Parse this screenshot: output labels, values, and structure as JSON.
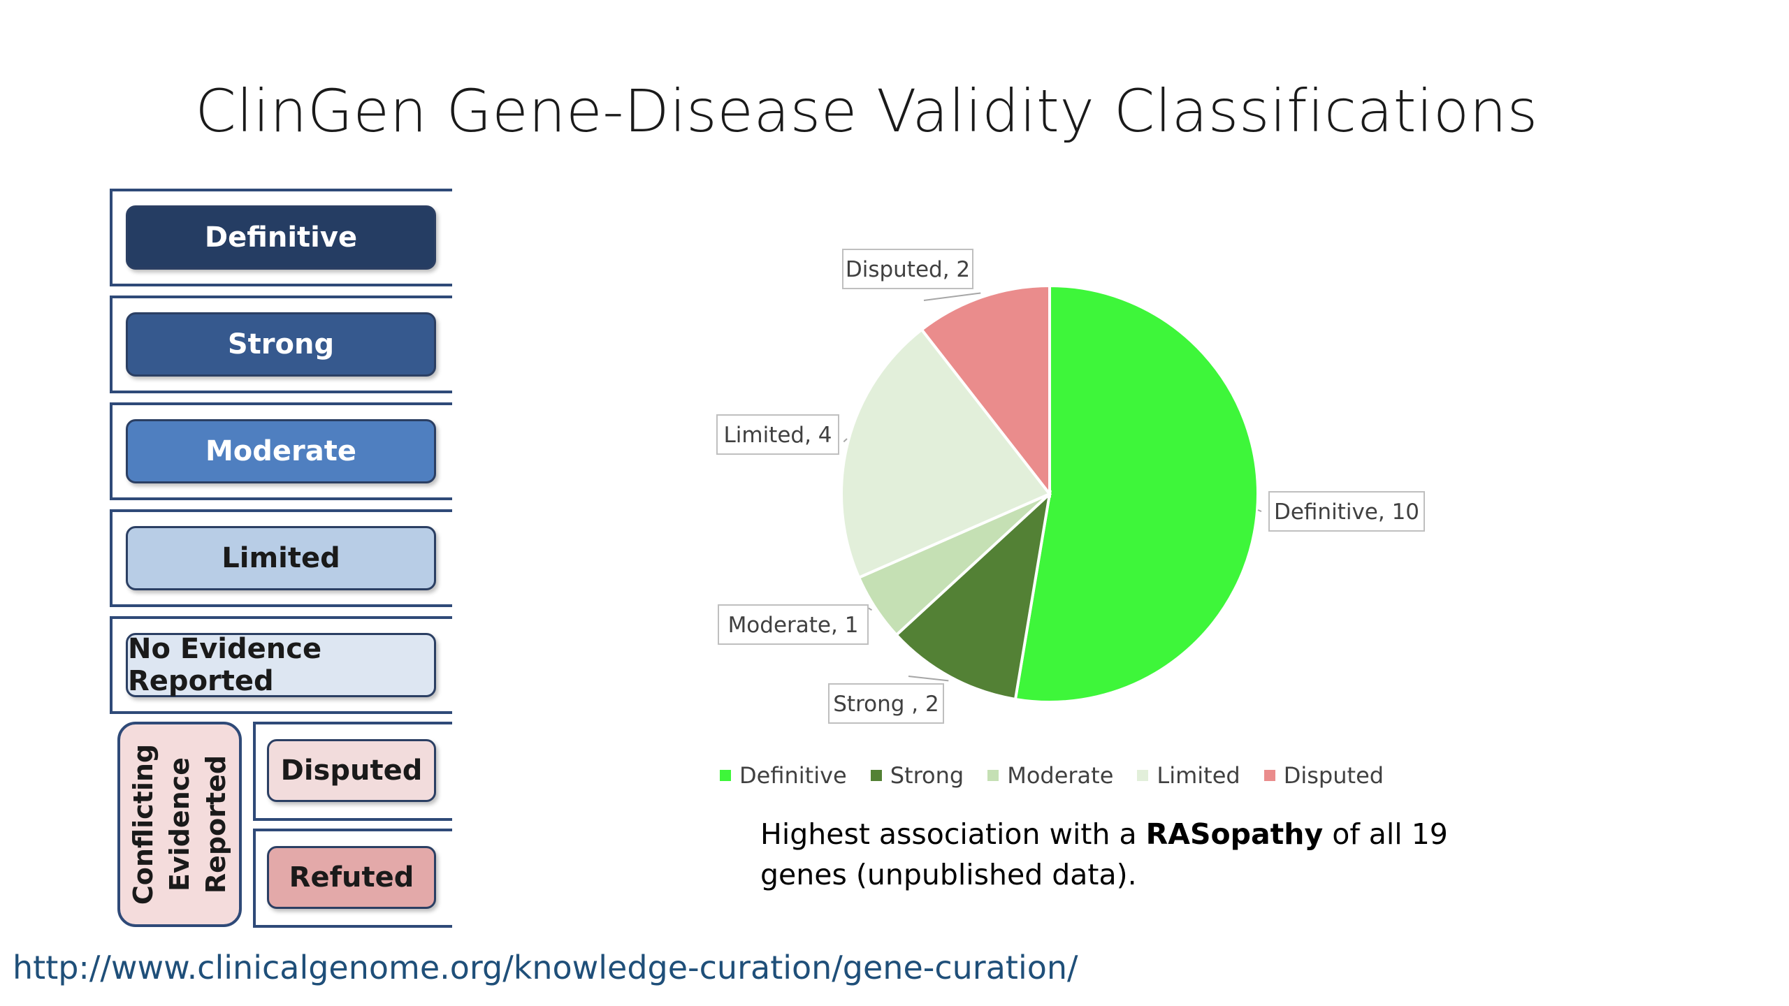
{
  "slide": {
    "title": "ClinGen Gene-Disease Validity Classifications",
    "url": "http://www.clinicalgenome.org/knowledge-curation/gene-curation/"
  },
  "classifications": [
    {
      "label": "Definitive",
      "bg": "#253d63",
      "fg": "#ffffff"
    },
    {
      "label": "Strong",
      "bg": "#36598e",
      "fg": "#ffffff"
    },
    {
      "label": "Moderate",
      "bg": "#4f7fc0",
      "fg": "#ffffff"
    },
    {
      "label": "Limited",
      "bg": "#b8cde6",
      "fg": "#1a1a1a"
    },
    {
      "label": "No Evidence Reported",
      "bg": "#dde6f2",
      "fg": "#1a1a1a"
    }
  ],
  "conflicting": {
    "group_label_line1": "Conflicting",
    "group_label_line2": "Evidence",
    "group_label_line3": "Reported",
    "items": [
      {
        "label": "Disputed",
        "bg": "#f2dcdc"
      },
      {
        "label": "Refuted",
        "bg": "#e3a9a9"
      }
    ]
  },
  "chart_data": {
    "type": "pie",
    "slices": [
      {
        "label": "Definitive",
        "value": 10,
        "color": "#3ef63a",
        "callout": "Definitive, 10"
      },
      {
        "label": "Strong",
        "value": 2,
        "color": "#538135",
        "callout": "Strong , 2"
      },
      {
        "label": "Moderate",
        "value": 1,
        "color": "#c5e0b4",
        "callout": "Moderate, 1"
      },
      {
        "label": "Limited",
        "value": 4,
        "color": "#e2efda",
        "callout": "Limited, 4"
      },
      {
        "label": "Disputed",
        "value": 2,
        "color": "#ea8c8c",
        "callout": "Disputed, 2"
      }
    ],
    "legend_position": "bottom"
  },
  "note": {
    "part1": "Highest association with a ",
    "bold": "RASopathy",
    "part2": " of all 19",
    "line2": "genes (unpublished data)."
  }
}
